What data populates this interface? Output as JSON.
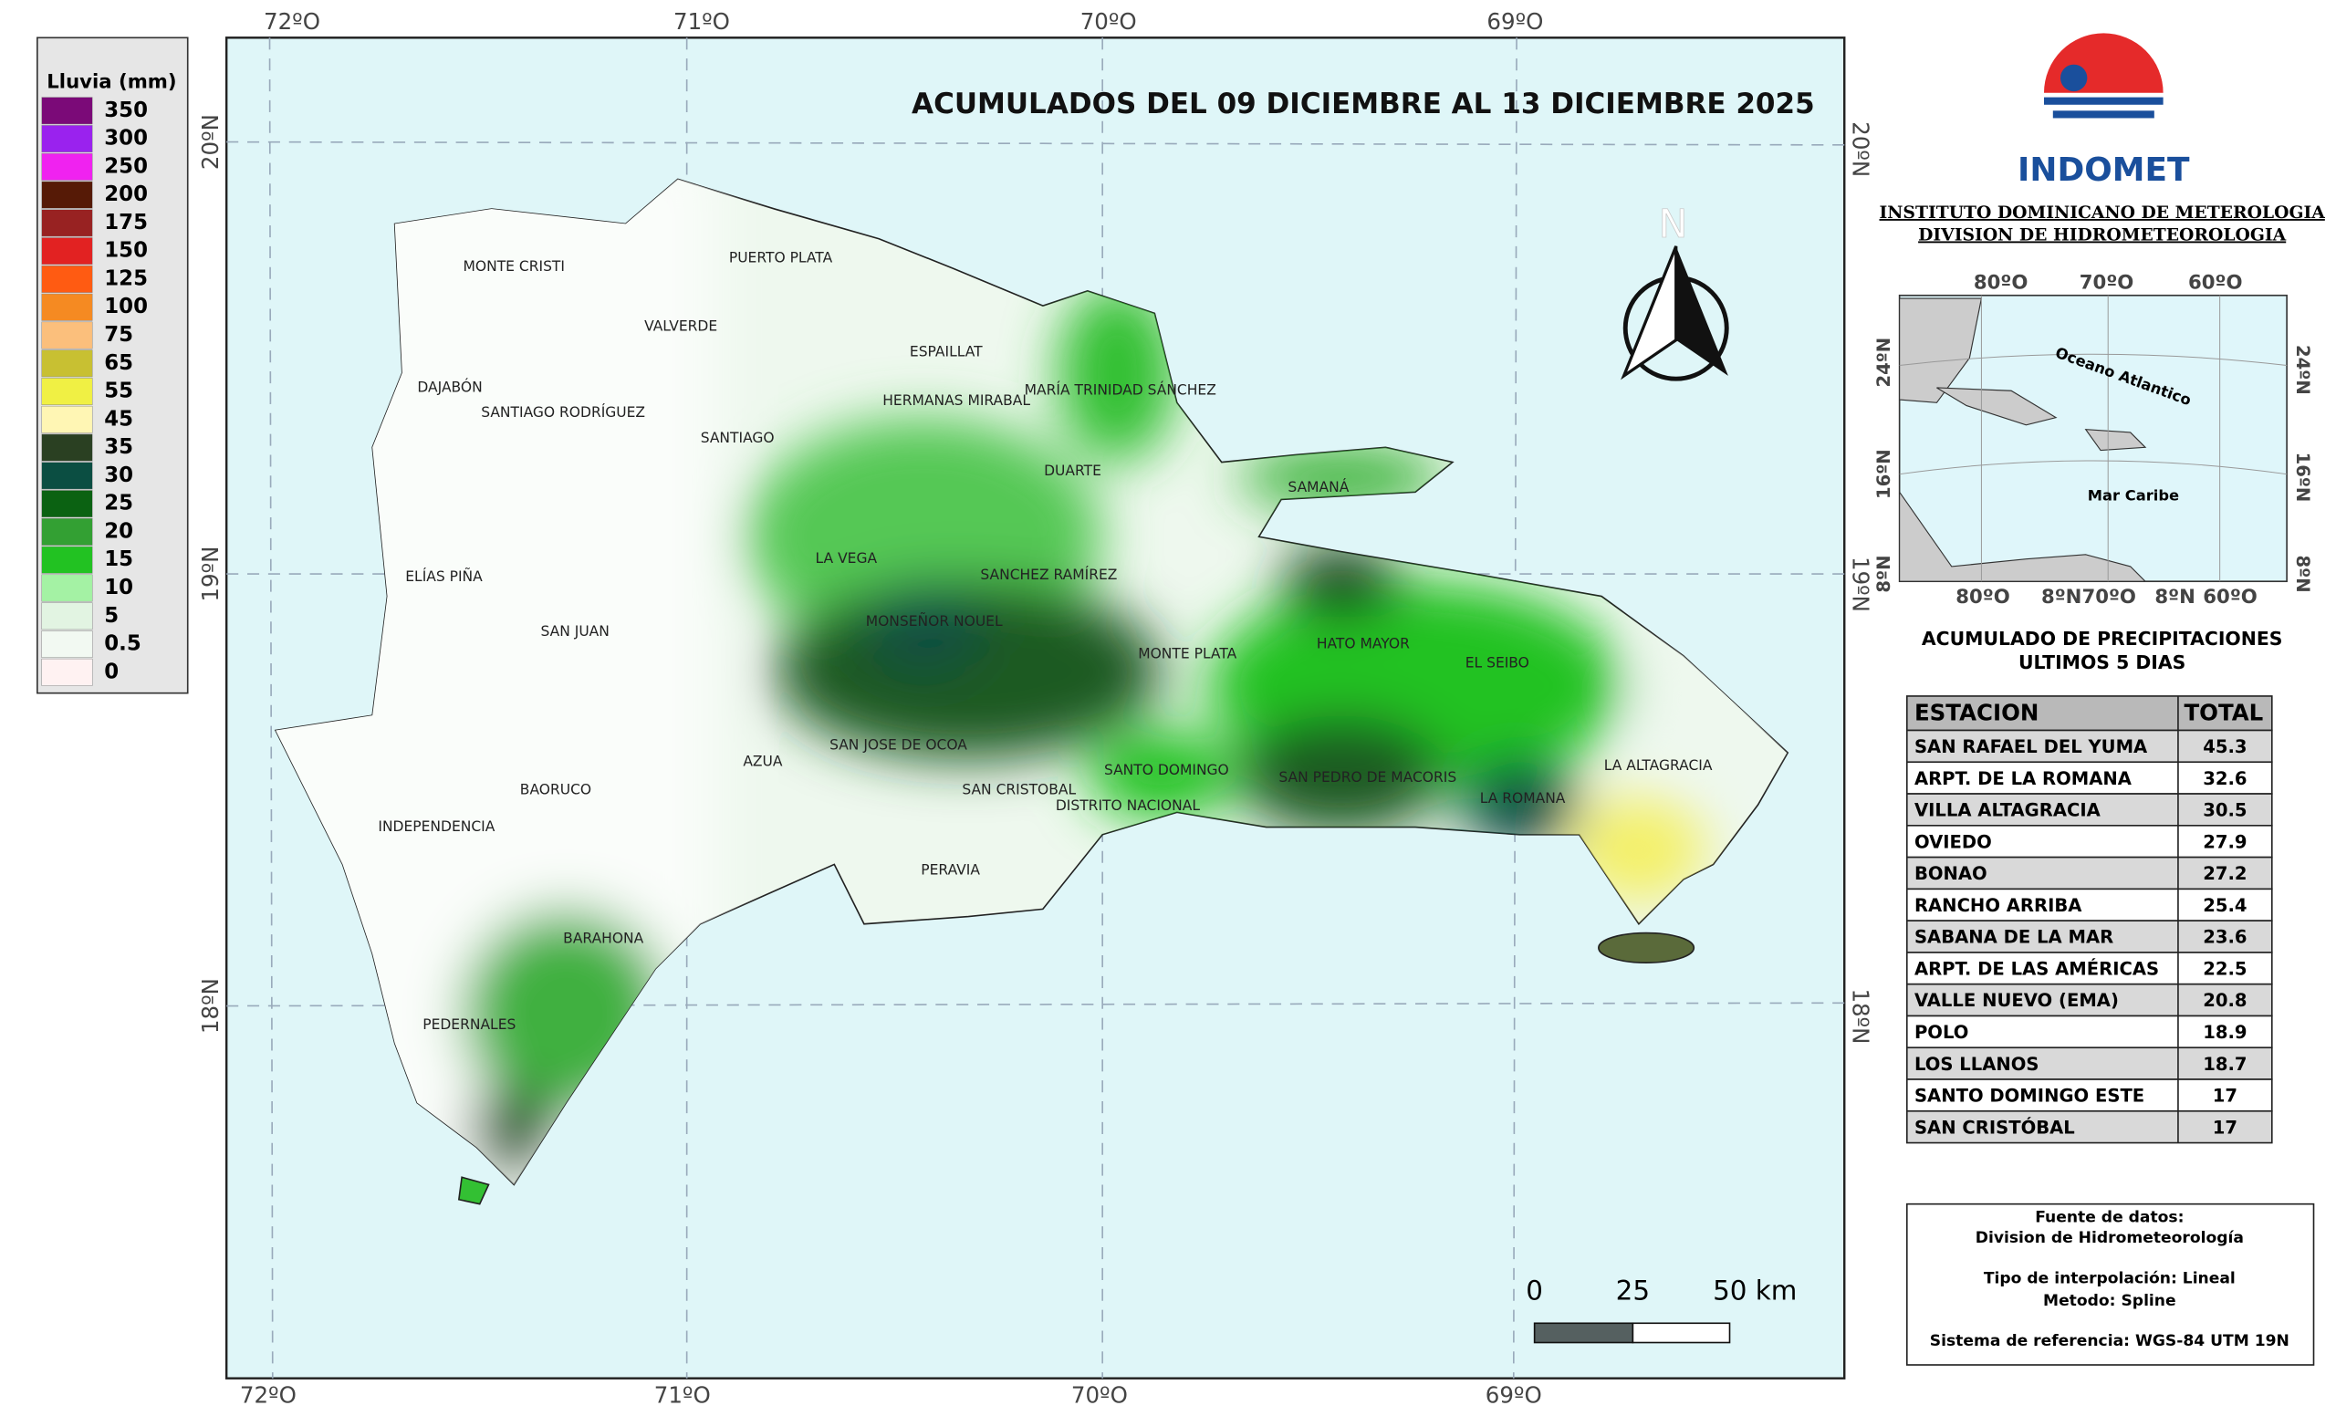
{
  "title": "ACUMULADOS DEL  09 DICIEMBRE AL 13 DICIEMBRE 2025",
  "legend": {
    "title": "Lluvia (mm)",
    "items": [
      {
        "value": 350,
        "color": "#7b0a78"
      },
      {
        "value": 300,
        "color": "#9a22ee"
      },
      {
        "value": 250,
        "color": "#f022f0"
      },
      {
        "value": 200,
        "color": "#561a06"
      },
      {
        "value": 175,
        "color": "#982222"
      },
      {
        "value": 150,
        "color": "#e22222"
      },
      {
        "value": 125,
        "color": "#ff5b12"
      },
      {
        "value": 100,
        "color": "#f58a22"
      },
      {
        "value": 75,
        "color": "#fbbf7c"
      },
      {
        "value": 65,
        "color": "#c8c032"
      },
      {
        "value": 55,
        "color": "#f0f044"
      },
      {
        "value": 45,
        "color": "#fff6b4"
      },
      {
        "value": 35,
        "color": "#2a4022"
      },
      {
        "value": 30,
        "color": "#0b4e42"
      },
      {
        "value": 25,
        "color": "#0b6212"
      },
      {
        "value": 20,
        "color": "#33a033"
      },
      {
        "value": 15,
        "color": "#22c222"
      },
      {
        "value": 10,
        "color": "#a4f2a4"
      },
      {
        "value": 5,
        "color": "#e2f4e2"
      },
      {
        "value": 0.5,
        "color": "#f2f9f2"
      },
      {
        "value": 0,
        "color": "#fff2f2"
      }
    ]
  },
  "coords": {
    "top": [
      "72ºO",
      "71ºO",
      "70ºO",
      "69ºO"
    ],
    "bottom": [
      "72ºO",
      "71ºO",
      "70ºO",
      "69ºO"
    ],
    "left": [
      "20ºN",
      "19ºN",
      "18ºN"
    ],
    "right": [
      "20ºN",
      "19ºN",
      "18ºN"
    ]
  },
  "provinces": [
    "MONTE CRISTI",
    "PUERTO PLATA",
    "VALVERDE",
    "ESPAILLAT",
    "HERMANAS MIRABAL",
    "MARÍA TRINIDAD SÁNCHEZ",
    "DAJABÓN",
    "SANTIAGO RODRÍGUEZ",
    "SANTIAGO",
    "DUARTE",
    "SAMANÁ",
    "LA VEGA",
    "SANCHEZ RAMÍREZ",
    "ELÍAS PIÑA",
    "SAN JUAN",
    "MONSEÑOR NOUEL",
    "MONTE PLATA",
    "HATO MAYOR",
    "EL SEIBO",
    "SAN JOSE DE OCOA",
    "AZUA",
    "BAORUCO",
    "SAN CRISTOBAL",
    "SANTO DOMINGO",
    "DISTRITO NACIONAL",
    "SAN PEDRO DE MACORIS",
    "LA ROMANA",
    "LA ALTAGRACIA",
    "INDEPENDENCIA",
    "PERAVIA",
    "BARAHONA",
    "PEDERNALES"
  ],
  "north": "N",
  "scale_bar": [
    "0",
    "25",
    "50 km"
  ],
  "logo": {
    "name": "INDOMET",
    "institute": "INSTITUTO DOMINICANO DE METEROLOGIA",
    "division": "DIVISION DE HIDROMETEOROLOGIA"
  },
  "inset": {
    "top": [
      "80ºO",
      "70ºO",
      "60ºO"
    ],
    "bottom": [
      "80ºO",
      "8ºN70ºO",
      "8ºN",
      "60ºO"
    ],
    "left": [
      "24ºN",
      "16ºN",
      "8ºN"
    ],
    "right": [
      "24ºN",
      "16ºN",
      "8ºN"
    ],
    "ocean": "Oceano Atlantico",
    "sea": "Mar Caribe"
  },
  "table": {
    "title": [
      "ACUMULADO DE PRECIPITACIONES",
      "ULTIMOS 5 DIAS"
    ],
    "header": [
      "ESTACION",
      "TOTAL"
    ],
    "rows": [
      [
        "SAN RAFAEL DEL YUMA",
        45.3
      ],
      [
        "ARPT. DE LA ROMANA",
        32.6
      ],
      [
        "VILLA ALTAGRACIA",
        30.5
      ],
      [
        "OVIEDO",
        27.9
      ],
      [
        "BONAO",
        27.2
      ],
      [
        "RANCHO ARRIBA",
        25.4
      ],
      [
        "SABANA DE LA MAR",
        23.6
      ],
      [
        "ARPT. DE LAS AMÉRICAS",
        22.5
      ],
      [
        "VALLE NUEVO (EMA)",
        20.8
      ],
      [
        "POLO",
        18.9
      ],
      [
        "LOS LLANOS",
        18.7
      ],
      [
        "SANTO DOMINGO ESTE",
        17
      ],
      [
        "SAN CRISTÓBAL",
        17
      ]
    ]
  },
  "source": [
    "Fuente de datos:",
    "Division de Hidrometeorología",
    "Tipo de interpolación: Lineal",
    "Metodo: Spline",
    "Sistema de referencia: WGS-84 UTM 19N"
  ]
}
